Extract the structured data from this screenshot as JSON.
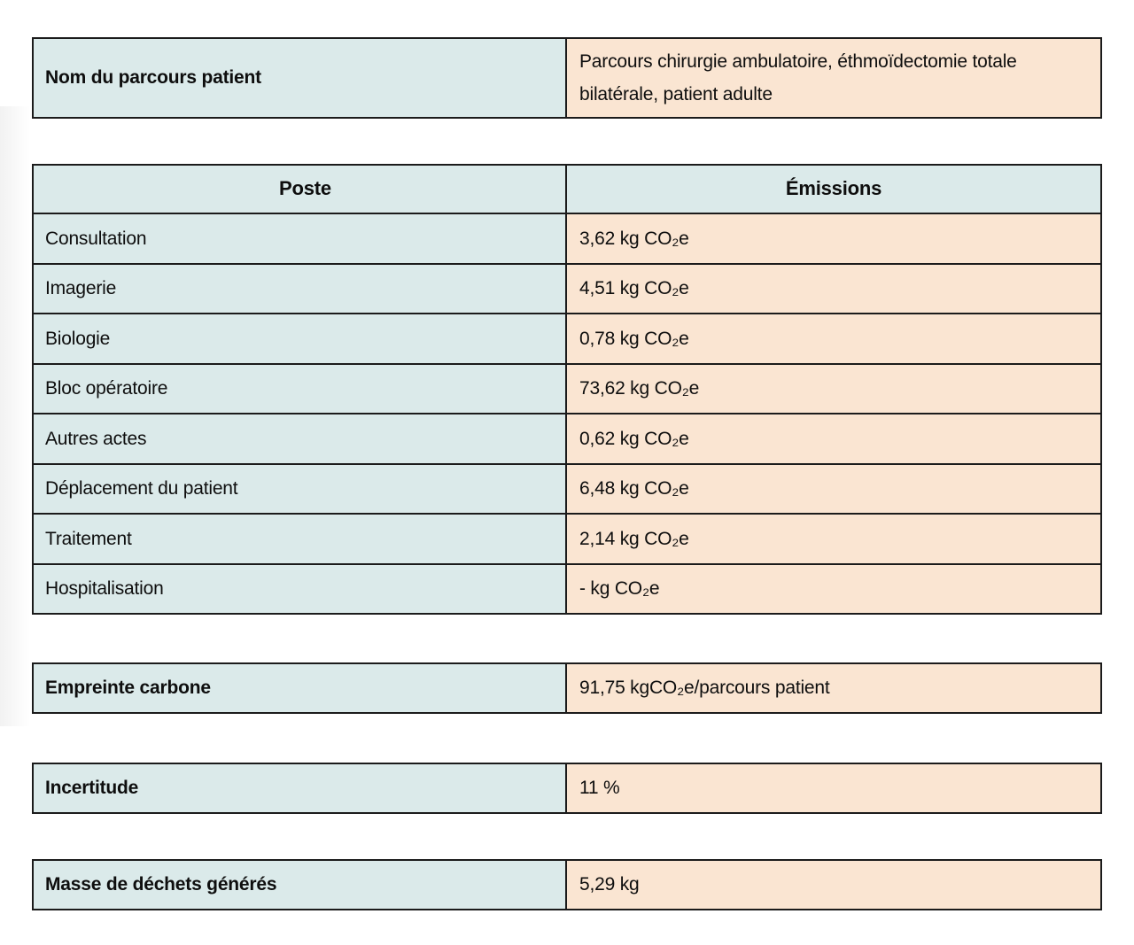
{
  "colors": {
    "label_bg": "#dbeaea",
    "value_bg": "#fae5d2",
    "border": "#1b1b1b",
    "text": "#0e0e0e",
    "page_bg": "#ffffff"
  },
  "name_table": {
    "label": "Nom du parcours patient",
    "value": "Parcours chirurgie ambulatoire, éthmoïdectomie totale bilatérale, patient adulte"
  },
  "emissions_table": {
    "columns": [
      "Poste",
      "Émissions"
    ],
    "rows": [
      {
        "poste": "Consultation",
        "emissions": "3,62 kg CO₂e"
      },
      {
        "poste": "Imagerie",
        "emissions": "4,51 kg CO₂e"
      },
      {
        "poste": "Biologie",
        "emissions": "0,78 kg CO₂e"
      },
      {
        "poste": "Bloc opératoire",
        "emissions": "73,62 kg CO₂e"
      },
      {
        "poste": "Autres actes",
        "emissions": "0,62 kg CO₂e"
      },
      {
        "poste": "Déplacement du patient",
        "emissions": "6,48 kg CO₂e"
      },
      {
        "poste": "Traitement",
        "emissions": "2,14 kg CO₂e"
      },
      {
        "poste": "Hospitalisation",
        "emissions": "- kg CO₂e"
      }
    ]
  },
  "summary_tables": [
    {
      "label": "Empreinte carbone",
      "value": "91,75 kgCO₂e/parcours patient"
    },
    {
      "label": "Incertitude",
      "value": "11 %"
    },
    {
      "label": "Masse de déchets générés",
      "value": "5,29 kg"
    }
  ]
}
